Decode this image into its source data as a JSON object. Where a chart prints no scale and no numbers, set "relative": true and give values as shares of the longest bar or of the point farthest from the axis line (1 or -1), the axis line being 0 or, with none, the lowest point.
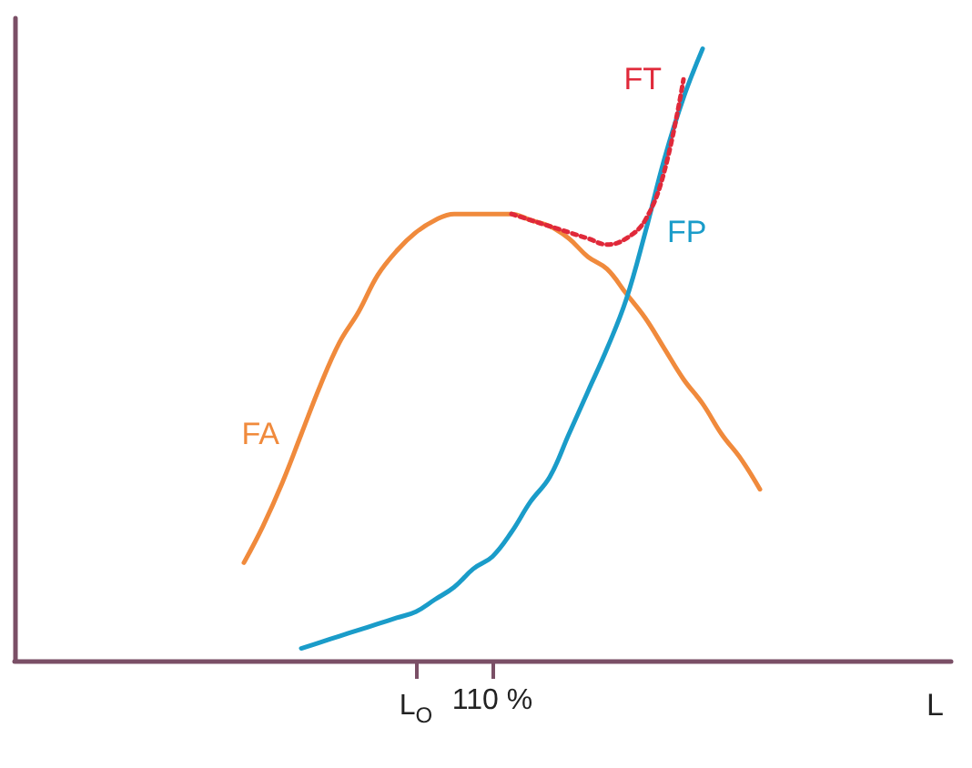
{
  "chart_data": {
    "type": "line",
    "relative": true,
    "xlabel": "L",
    "categories": [
      null,
      null,
      null,
      null,
      null,
      null,
      null,
      null,
      null,
      null,
      null,
      null,
      null,
      null,
      null,
      null,
      null,
      null,
      null,
      null,
      null,
      "L$_{O}$",
      null,
      null,
      null,
      "110 %",
      null,
      null,
      null,
      null,
      null,
      null,
      null,
      null,
      null,
      null,
      null,
      null,
      null,
      null,
      null,
      null,
      null,
      null,
      null,
      null,
      null,
      null,
      null,
      null
    ],
    "legend": false,
    "grid": false,
    "marker": "none",
    "series": [
      {
        "name": "FA",
        "color": "#f08a3c",
        "line_style": "solid",
        "values": [
          null,
          null,
          null,
          null,
          null,
          null,
          null,
          null,
          null,
          null,
          null,
          null,
          0.16,
          0.22,
          0.29,
          0.37,
          0.45,
          0.52,
          0.57,
          0.63,
          0.67,
          0.7,
          0.72,
          0.73,
          0.73,
          0.73,
          0.73,
          0.72,
          0.71,
          0.69,
          0.66,
          0.64,
          0.6,
          0.56,
          0.51,
          0.46,
          0.42,
          0.37,
          0.33,
          0.28,
          null,
          null,
          null,
          null,
          null,
          null,
          null,
          null,
          null,
          null
        ]
      },
      {
        "name": "FP",
        "color": "#1a9cc9",
        "line_style": "solid",
        "values": [
          null,
          null,
          null,
          null,
          null,
          null,
          null,
          null,
          null,
          null,
          null,
          null,
          null,
          null,
          null,
          0.02,
          0.03,
          0.04,
          0.05,
          0.06,
          0.07,
          0.08,
          0.1,
          0.12,
          0.15,
          0.17,
          0.21,
          0.26,
          0.3,
          0.37,
          0.44,
          0.51,
          0.59,
          0.7,
          0.82,
          0.92,
          1.0,
          null,
          null,
          null,
          null,
          null,
          null,
          null,
          null,
          null,
          null,
          null,
          null,
          null
        ]
      },
      {
        "name": "FT",
        "color": "#e0293a",
        "line_style": "dotted",
        "values": [
          null,
          null,
          null,
          null,
          null,
          null,
          null,
          null,
          null,
          null,
          null,
          null,
          null,
          null,
          null,
          null,
          null,
          null,
          null,
          null,
          null,
          null,
          null,
          null,
          null,
          null,
          0.73,
          0.72,
          0.71,
          0.7,
          0.69,
          0.68,
          0.69,
          0.72,
          0.8,
          0.95,
          null,
          null,
          null,
          null,
          null,
          null,
          null,
          null,
          null,
          null,
          null,
          null,
          null,
          null
        ]
      }
    ]
  }
}
